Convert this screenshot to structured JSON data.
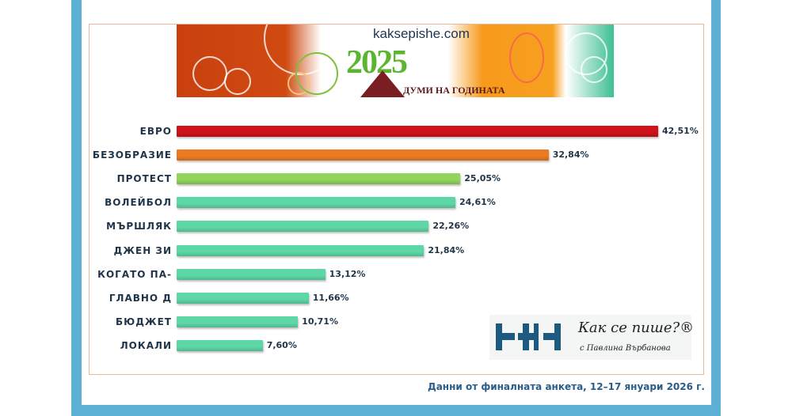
{
  "banner": {
    "site": "kaksepishe.com",
    "year": "2025",
    "subtitle": "ДУМИ НА ГОДИНАТА"
  },
  "logo": {
    "title": "Как се пише?®",
    "subtitle": "с Павлина Върбанова"
  },
  "footer": "Данни от финалната анкета, 12–17 януари 2026 г.",
  "chart_data": {
    "type": "bar",
    "orientation": "horizontal",
    "categories": [
      "ЕВРО",
      "БЕЗОБРАЗИЕ",
      "ПРОТЕСТ",
      "ВОЛЕЙБОЛ",
      "МЪРШЛЯК",
      "ДЖЕН ЗИ",
      "КОГАТО ПА-",
      "ГЛАВНО Д",
      "БЮДЖЕТ",
      "ЛОКАЛИ"
    ],
    "values": [
      42.51,
      32.84,
      25.05,
      24.61,
      22.26,
      21.84,
      13.12,
      11.66,
      10.71,
      7.6
    ],
    "value_labels": [
      "42,51%",
      "32,84%",
      "25,05%",
      "24,61%",
      "22,26%",
      "21,84%",
      "13,12%",
      "11,66%",
      "10,71%",
      "7,60%"
    ],
    "colors": [
      "#d0121a",
      "#ec7a22",
      "#93d45a",
      "#5ed7a6",
      "#5ed7a6",
      "#5ed7a6",
      "#5ed7a6",
      "#5ed7a6",
      "#5ed7a6",
      "#5ed7a6"
    ],
    "grid": false
  }
}
